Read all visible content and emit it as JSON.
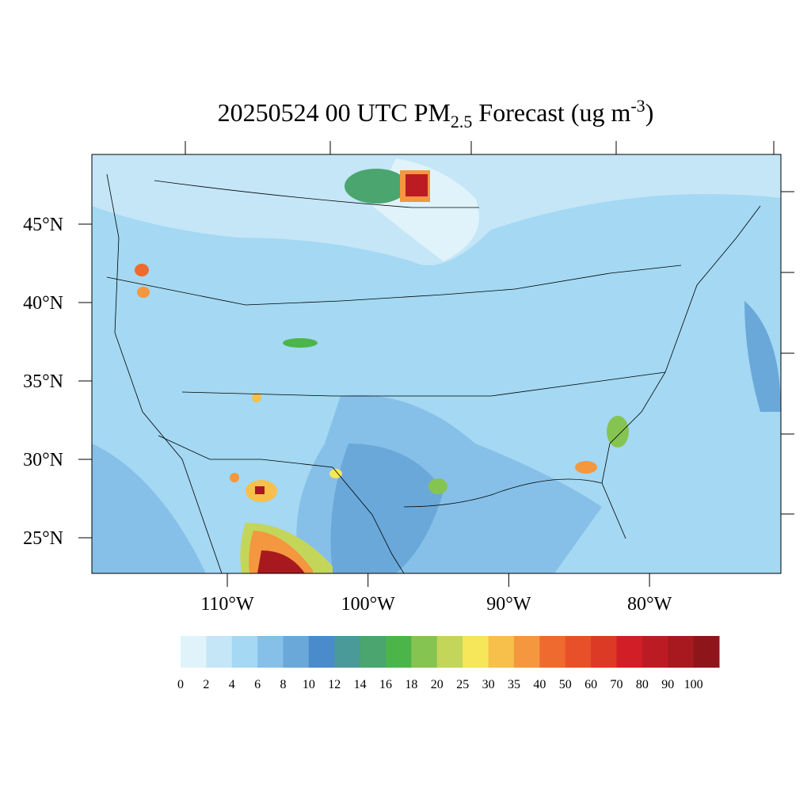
{
  "title": {
    "main": "20250524 00 UTC PM",
    "sub": "2.5",
    "mid": " Forecast (ug m",
    "sup": "-3",
    "end": ")"
  },
  "latitudes": [
    {
      "value": 45,
      "label": "45°N"
    },
    {
      "value": 40,
      "label": "40°N"
    },
    {
      "value": 35,
      "label": "35°N"
    },
    {
      "value": 30,
      "label": "30°N"
    },
    {
      "value": 25,
      "label": "25°N"
    }
  ],
  "longitudes": [
    {
      "value": -110,
      "label": "110°W"
    },
    {
      "value": -100,
      "label": "100°W"
    },
    {
      "value": -90,
      "label": "90°W"
    },
    {
      "value": -80,
      "label": "80°W"
    }
  ],
  "colorbar": {
    "labels": [
      0,
      2,
      4,
      6,
      8,
      10,
      12,
      14,
      16,
      18,
      20,
      25,
      30,
      35,
      40,
      50,
      60,
      70,
      80,
      90,
      100
    ],
    "colors": [
      "#e0f3fa",
      "#c4e6f7",
      "#a4d8f3",
      "#86c0e8",
      "#6aa8d9",
      "#4a8bcb",
      "#4a9a9a",
      "#4aa56e",
      "#4cb54a",
      "#86c452",
      "#c3d65a",
      "#f5e65a",
      "#f6c04a",
      "#f4973f",
      "#ef6a2e",
      "#e8502a",
      "#dd3a26",
      "#d21f27",
      "#bd1b24",
      "#a8191f",
      "#8e161a"
    ]
  }
}
